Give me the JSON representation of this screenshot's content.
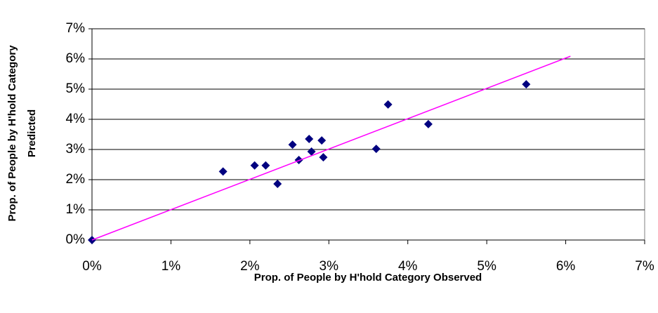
{
  "chart_data": {
    "type": "scatter",
    "xlabel": "Prop. of People by H'hold Category Observed",
    "ylabel": [
      "Prop. of People by H'hold Category",
      "Predicted"
    ],
    "xlim": [
      0,
      7
    ],
    "ylim": [
      0,
      7
    ],
    "xticks": [
      {
        "value": 0,
        "label": "0%"
      },
      {
        "value": 1,
        "label": "1%"
      },
      {
        "value": 2,
        "label": "2%"
      },
      {
        "value": 3,
        "label": "3%"
      },
      {
        "value": 4,
        "label": "4%"
      },
      {
        "value": 5,
        "label": "5%"
      },
      {
        "value": 6,
        "label": "6%"
      },
      {
        "value": 7,
        "label": "7%"
      }
    ],
    "yticks": [
      {
        "value": 0,
        "label": "0%"
      },
      {
        "value": 1,
        "label": "1%"
      },
      {
        "value": 2,
        "label": "2%"
      },
      {
        "value": 3,
        "label": "3%"
      },
      {
        "value": 4,
        "label": "4%"
      },
      {
        "value": 5,
        "label": "5%"
      },
      {
        "value": 6,
        "label": "6%"
      },
      {
        "value": 7,
        "label": "7%"
      }
    ],
    "grid": true,
    "series": [
      {
        "kind": "points",
        "color": "#000080",
        "x": [
          0,
          1.66,
          2.06,
          2.2,
          2.35,
          2.54,
          2.75,
          2.62,
          2.78,
          2.91,
          2.93,
          3.6,
          3.75,
          4.26,
          5.5
        ],
        "values": [
          0,
          2.27,
          2.47,
          2.47,
          1.86,
          3.16,
          3.35,
          2.65,
          2.93,
          3.3,
          2.74,
          3.02,
          4.49,
          3.84,
          5.16
        ]
      },
      {
        "kind": "line",
        "color": "#ff00ff",
        "x": [
          0,
          6.06
        ],
        "values": [
          0,
          6.09
        ]
      }
    ]
  }
}
